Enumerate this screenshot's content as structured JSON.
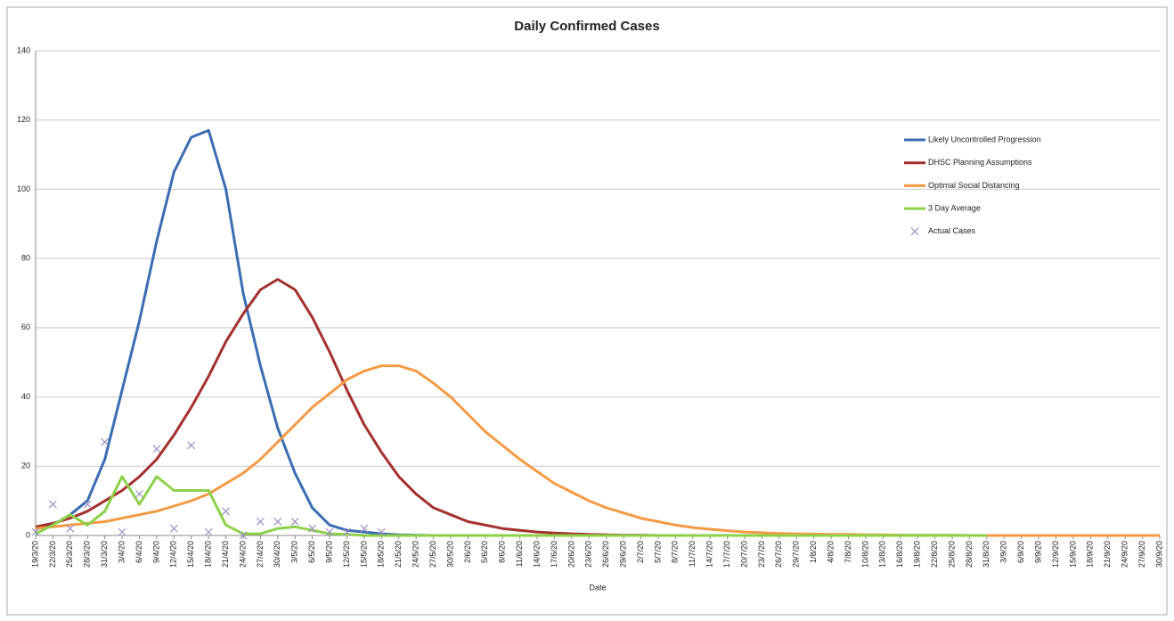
{
  "chart_data": {
    "type": "line",
    "title": "Daily Confirmed Cases",
    "x_label": "Date",
    "categories": [
      "19/3/20",
      "22/3/20",
      "25/3/20",
      "28/3/20",
      "31/3/20",
      "3/4/20",
      "6/4/20",
      "9/4/20",
      "12/4/20",
      "15/4/20",
      "18/4/20",
      "21/4/20",
      "24/4/20",
      "27/4/20",
      "30/4/20",
      "3/5/20",
      "6/5/20",
      "9/5/20",
      "12/5/20",
      "15/5/20",
      "18/5/20",
      "21/5/20",
      "24/5/20",
      "27/5/20",
      "30/5/20",
      "2/6/20",
      "5/6/20",
      "8/6/20",
      "11/6/20",
      "14/6/20",
      "17/6/20",
      "20/6/20",
      "23/6/20",
      "26/6/20",
      "29/6/20",
      "2/7/20",
      "5/7/20",
      "8/7/20",
      "11/7/20",
      "14/7/20",
      "17/7/20",
      "20/7/20",
      "23/7/20",
      "26/7/20",
      "29/7/20",
      "1/8/20",
      "4/8/20",
      "7/8/20",
      "10/8/20",
      "13/8/20",
      "16/8/20",
      "19/8/20",
      "22/8/20",
      "25/8/20",
      "28/8/20",
      "31/8/20",
      "3/9/20",
      "6/9/20",
      "9/9/20",
      "12/9/20",
      "15/9/20",
      "18/9/20",
      "21/9/20",
      "24/9/20",
      "27/9/20",
      "30/9/20"
    ],
    "ylim": [
      0,
      140
    ],
    "yticks": [
      0,
      20,
      40,
      60,
      80,
      100,
      120,
      140
    ],
    "grid": true,
    "legend": "right",
    "series": [
      {
        "name": "Likely Uncontrolled Progression",
        "color": "#3b6cb3",
        "style": "line",
        "values": [
          2,
          3,
          6,
          10,
          22,
          42,
          62,
          85,
          105,
          115,
          117,
          100,
          70,
          49,
          31,
          18,
          8,
          3,
          1.5,
          1,
          0.5,
          0.2,
          0.1,
          0,
          0,
          0,
          0,
          0,
          0,
          0,
          0,
          0,
          0,
          0,
          0,
          0,
          0,
          0,
          0,
          0,
          0,
          0,
          0,
          0,
          0,
          0,
          0,
          0,
          0,
          0,
          0,
          0,
          0,
          0,
          0,
          0,
          0,
          0,
          0,
          0,
          0,
          0,
          0,
          0,
          0,
          0
        ]
      },
      {
        "name": "DHSC Planning Assumptions",
        "color": "#a3302e",
        "style": "line",
        "values": [
          2.5,
          3.5,
          5,
          7,
          10,
          13,
          17,
          22,
          29,
          37,
          46,
          56,
          64,
          71,
          74,
          71,
          63,
          53,
          42,
          32,
          24,
          17,
          12,
          8,
          6,
          4,
          3,
          2,
          1.5,
          1,
          0.7,
          0.5,
          0.3,
          0.2,
          0.1,
          0.1,
          0,
          0,
          0,
          0,
          0,
          0,
          0,
          0,
          0,
          0,
          0,
          0,
          0,
          0,
          0,
          0,
          0,
          0,
          0,
          0,
          0,
          0,
          0,
          0,
          0,
          0,
          0,
          0,
          0,
          0
        ]
      },
      {
        "name": "Optimal Social Distancing",
        "color": "#f59a45",
        "style": "line",
        "values": [
          2,
          2.5,
          3,
          3.5,
          4,
          5,
          6,
          7,
          8.5,
          10,
          12,
          15,
          18,
          22,
          27,
          32,
          37,
          41,
          45,
          47.5,
          49,
          49,
          47.5,
          44,
          40,
          35,
          30,
          26,
          22,
          18.5,
          15,
          12.5,
          10,
          8,
          6.5,
          5,
          4,
          3,
          2.3,
          1.8,
          1.4,
          1,
          0.8,
          0.6,
          0.5,
          0.4,
          0.3,
          0.3,
          0.2,
          0.2,
          0.1,
          0.1,
          0.1,
          0.1,
          0,
          0,
          0,
          0,
          0,
          0,
          0,
          0,
          0,
          0,
          0,
          0
        ]
      },
      {
        "name": "3 Day Average",
        "color": "#8dd14a",
        "style": "line",
        "values": [
          0.5,
          3,
          6,
          3,
          7,
          17,
          9,
          17,
          13,
          13,
          13,
          3,
          0.5,
          0.5,
          2,
          2.5,
          1.5,
          0.5,
          0.3,
          0,
          0,
          0,
          0,
          0,
          0,
          0,
          0,
          0,
          0,
          0,
          0,
          0,
          0,
          0,
          0,
          0,
          0,
          0,
          0,
          0,
          0,
          0,
          0,
          0,
          0,
          0,
          0,
          0,
          0,
          0,
          0,
          0,
          0,
          0,
          0,
          0,
          null,
          null,
          null,
          null,
          null,
          null,
          null,
          null,
          null,
          null
        ]
      },
      {
        "name": "Actual Cases",
        "color": "#9d8fc4",
        "style": "marker",
        "values": [
          1,
          9,
          2,
          9,
          27,
          1,
          12,
          25,
          2,
          26,
          1,
          7,
          0,
          4,
          4,
          4,
          2,
          1,
          1,
          2,
          1,
          null,
          null,
          null,
          null,
          null,
          null,
          null,
          null,
          null,
          null,
          null,
          null,
          null,
          null,
          null,
          null,
          null,
          null,
          null,
          null,
          null,
          null,
          null,
          null,
          null,
          null,
          null,
          null,
          null,
          null,
          null,
          null,
          null,
          null,
          null,
          null,
          null,
          null,
          null,
          null,
          null,
          null,
          null,
          null,
          null
        ]
      }
    ]
  }
}
